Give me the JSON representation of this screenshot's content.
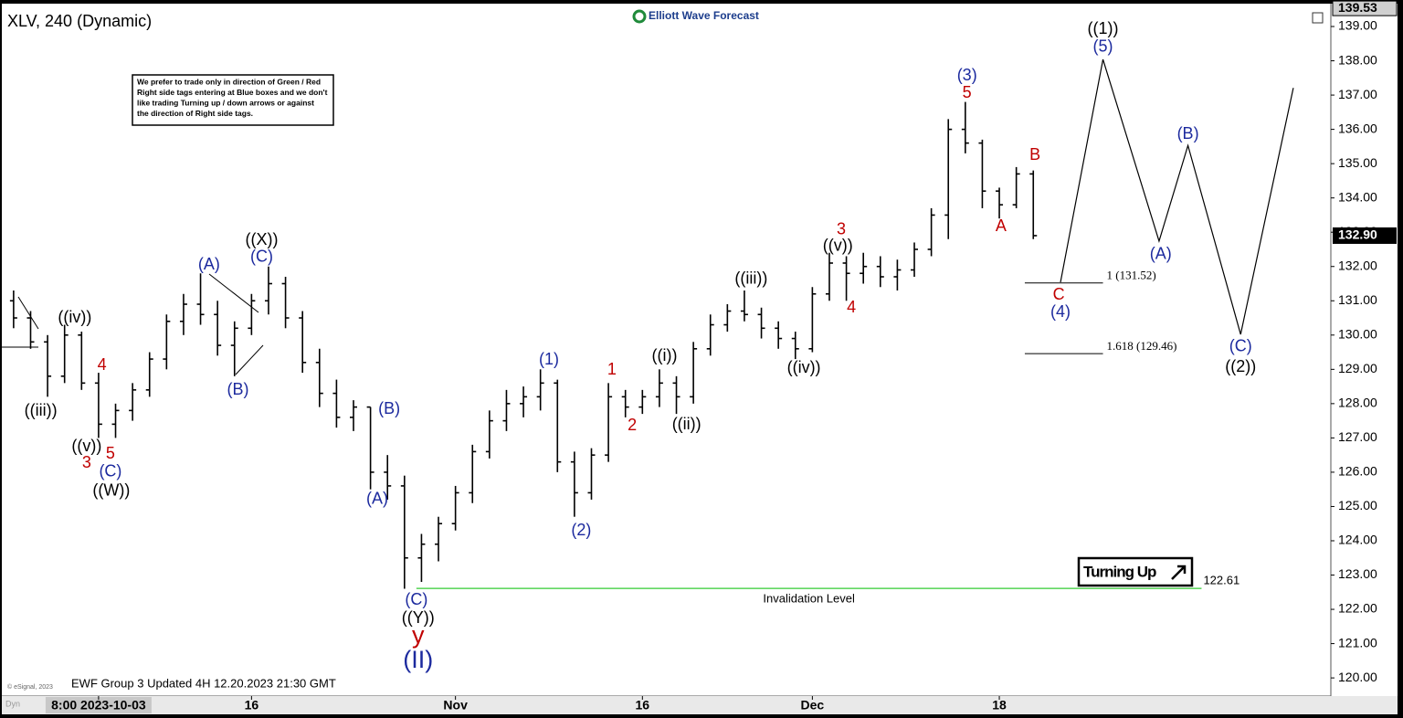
{
  "chart_data": {
    "type": "ohlc",
    "title": "XLV, 240 (Dynamic)",
    "brand": "Elliott Wave Forecast",
    "note": [
      "We prefer to trade only in direction of Green / Red",
      "Right side tags entering at Blue boxes and we don't",
      "like trading Turning up / down arrows or against",
      "the direction of Right side tags."
    ],
    "footer": "EWF Group 3 Updated 4H 12.20.2023 21:30 GMT",
    "copyright": "© eSignal, 2023",
    "corner_label": "Dyn",
    "badge": "Turning Up",
    "xlim": [
      -5.8,
      72.4
    ],
    "ylim": [
      119.47,
      139.56
    ],
    "xticks": [
      {
        "value": 0,
        "label": "8:00 2023-10-03"
      },
      {
        "value": 9,
        "label": "16"
      },
      {
        "value": 21,
        "label": "Nov"
      },
      {
        "value": 32,
        "label": "16"
      },
      {
        "value": 42,
        "label": "Dec"
      },
      {
        "value": 53,
        "label": "18"
      }
    ],
    "yticks": [
      {
        "value": 120,
        "label": "120.00"
      },
      {
        "value": 121,
        "label": "121.00"
      },
      {
        "value": 122,
        "label": "122.00"
      },
      {
        "value": 123,
        "label": "123.00"
      },
      {
        "value": 124,
        "label": "124.00"
      },
      {
        "value": 125,
        "label": "125.00"
      },
      {
        "value": 126,
        "label": "126.00"
      },
      {
        "value": 127,
        "label": "127.00"
      },
      {
        "value": 128,
        "label": "128.00"
      },
      {
        "value": 129,
        "label": "129.00"
      },
      {
        "value": 130,
        "label": "130.00"
      },
      {
        "value": 131,
        "label": "131.00"
      },
      {
        "value": 132,
        "label": "132.00"
      },
      {
        "value": 133,
        "label": "133.00"
      },
      {
        "value": 134,
        "label": "134.00"
      },
      {
        "value": 135,
        "label": "135.00"
      },
      {
        "value": 136,
        "label": "136.00"
      },
      {
        "value": 137,
        "label": "137.00"
      },
      {
        "value": 138,
        "label": "138.00"
      },
      {
        "value": 139,
        "label": "139.00"
      }
    ],
    "top_price": {
      "value": 139.53,
      "label": "139.53"
    },
    "last_price": {
      "value": 132.9,
      "label": "132.90"
    },
    "color": "#000000",
    "x": [
      -5,
      -4,
      -3,
      -2,
      -1,
      0,
      1,
      2,
      3,
      4,
      5,
      6,
      7,
      8,
      9,
      10,
      11,
      12,
      13,
      14,
      15,
      16,
      17,
      18,
      19,
      20,
      21,
      22,
      23,
      24,
      25,
      26,
      27,
      28,
      29,
      30,
      31,
      32,
      33,
      34,
      35,
      36,
      37,
      38,
      39,
      40,
      41,
      42,
      43,
      44,
      45,
      46,
      47,
      48,
      49,
      50,
      51,
      52,
      53,
      54,
      55
    ],
    "open": [
      131.0,
      130.5,
      129.8,
      128.8,
      130.0,
      128.6,
      127.4,
      127.8,
      128.4,
      129.3,
      130.4,
      130.9,
      130.6,
      129.7,
      130.2,
      131.0,
      131.5,
      130.5,
      129.2,
      128.3,
      127.6,
      127.9,
      126.0,
      125.6,
      123.5,
      123.9,
      124.5,
      125.4,
      126.6,
      127.5,
      128.0,
      128.2,
      128.6,
      126.3,
      125.4,
      126.5,
      128.2,
      127.9,
      128.2,
      128.6,
      128.2,
      129.6,
      130.3,
      130.7,
      130.6,
      130.2,
      129.9,
      129.6,
      131.2,
      132.1,
      131.8,
      132.0,
      131.7,
      131.9,
      132.5,
      133.5,
      136.0,
      135.6,
      134.2,
      133.8,
      134.7
    ],
    "high": [
      131.3,
      130.7,
      130.0,
      130.3,
      130.1,
      128.9,
      128.0,
      128.6,
      129.5,
      130.6,
      131.2,
      131.8,
      131.0,
      130.4,
      131.2,
      132.0,
      131.7,
      130.7,
      129.6,
      128.7,
      128.1,
      127.9,
      126.5,
      125.9,
      124.2,
      124.7,
      125.6,
      126.8,
      127.8,
      128.4,
      128.5,
      129.0,
      128.7,
      126.6,
      126.7,
      128.6,
      128.4,
      128.4,
      129.0,
      128.8,
      129.8,
      130.6,
      130.9,
      131.3,
      130.8,
      130.4,
      130.1,
      131.4,
      132.4,
      132.3,
      132.4,
      132.3,
      132.2,
      132.7,
      133.7,
      136.3,
      136.8,
      135.7,
      134.3,
      134.9,
      134.8
    ],
    "low": [
      130.2,
      129.6,
      128.2,
      128.6,
      128.4,
      127.0,
      127.0,
      127.5,
      128.2,
      129.0,
      130.0,
      130.3,
      129.4,
      128.8,
      130.0,
      130.6,
      130.2,
      128.9,
      127.9,
      127.3,
      127.2,
      125.5,
      125.2,
      122.6,
      122.8,
      123.4,
      124.3,
      125.1,
      126.4,
      127.2,
      127.6,
      127.8,
      126.0,
      124.7,
      125.2,
      126.3,
      127.6,
      127.7,
      127.9,
      127.7,
      128.0,
      129.4,
      130.1,
      130.4,
      129.9,
      129.6,
      129.3,
      129.5,
      131.0,
      131.0,
      131.5,
      131.4,
      131.3,
      131.7,
      132.3,
      132.8,
      135.3,
      133.7,
      133.4,
      133.7,
      132.8
    ],
    "close": [
      130.5,
      129.8,
      128.8,
      130.0,
      128.6,
      127.4,
      127.8,
      128.4,
      129.3,
      130.4,
      130.9,
      130.6,
      129.7,
      130.2,
      131.0,
      131.5,
      130.5,
      129.2,
      128.3,
      127.6,
      127.9,
      126.0,
      125.6,
      123.5,
      123.9,
      124.5,
      125.4,
      126.6,
      127.5,
      128.0,
      128.2,
      128.6,
      126.3,
      125.4,
      126.5,
      128.2,
      127.9,
      128.2,
      128.6,
      128.2,
      129.6,
      130.3,
      130.7,
      130.6,
      130.2,
      129.9,
      129.6,
      131.2,
      132.1,
      131.8,
      132.0,
      131.7,
      131.9,
      132.5,
      133.5,
      136.0,
      135.6,
      134.2,
      133.8,
      134.7,
      132.9
    ],
    "projection": {
      "x": [
        56.6,
        59.1,
        62.4,
        64.1,
        67.2,
        70.3
      ],
      "y": [
        131.54,
        138.04,
        132.74,
        135.53,
        130.02,
        137.21
      ]
    },
    "levels": [
      {
        "label": "1 (131.52)",
        "value": 131.52,
        "x": [
          54.5,
          59.1
        ]
      },
      {
        "label": "1.618 (129.46)",
        "value": 129.46,
        "x": [
          54.5,
          59.1
        ]
      }
    ],
    "invalidation": {
      "label": "Invalidation Level",
      "value": 122.61,
      "value_label": "122.61",
      "x": [
        18.7,
        64.9
      ],
      "color": "#33cc33"
    },
    "annotations": [
      {
        "text": "((iii))",
        "x": -3.4,
        "y": 127.78,
        "color": "#000000"
      },
      {
        "text": "((iv))",
        "x": -1.4,
        "y": 130.5,
        "color": "#000000"
      },
      {
        "text": "((v))",
        "x": -0.7,
        "y": 126.74,
        "color": "#000000"
      },
      {
        "text": "((W))",
        "x": 0.75,
        "y": 125.44,
        "color": "#000000"
      },
      {
        "text": "((X))",
        "x": 9.6,
        "y": 132.76,
        "color": "#000000"
      },
      {
        "text": "((Y))",
        "x": 18.8,
        "y": 121.73,
        "color": "#000000"
      },
      {
        "text": "((i))",
        "x": 33.3,
        "y": 129.38,
        "color": "#000000"
      },
      {
        "text": "((ii))",
        "x": 34.6,
        "y": 127.38,
        "color": "#000000"
      },
      {
        "text": "((iii))",
        "x": 38.4,
        "y": 131.62,
        "color": "#000000"
      },
      {
        "text": "((iv))",
        "x": 41.5,
        "y": 129.03,
        "color": "#000000"
      },
      {
        "text": "((v))",
        "x": 43.5,
        "y": 132.58,
        "color": "#000000"
      },
      {
        "text": "((1))",
        "x": 59.1,
        "y": 138.92,
        "color": "#000000"
      },
      {
        "text": "((2))",
        "x": 67.2,
        "y": 129.06,
        "color": "#000000"
      },
      {
        "text": "(C)",
        "x": 0.7,
        "y": 126.0,
        "color": "#1c2a9e"
      },
      {
        "text": "(A)",
        "x": 6.5,
        "y": 132.04,
        "color": "#1c2a9e"
      },
      {
        "text": "(C)",
        "x": 9.6,
        "y": 132.26,
        "color": "#1c2a9e"
      },
      {
        "text": "(B)",
        "x": 8.2,
        "y": 128.39,
        "color": "#1c2a9e"
      },
      {
        "text": "(B)",
        "x": 17.1,
        "y": 127.83,
        "color": "#1c2a9e"
      },
      {
        "text": "(A)",
        "x": 16.4,
        "y": 125.2,
        "color": "#1c2a9e"
      },
      {
        "text": "(C)",
        "x": 18.7,
        "y": 122.26,
        "color": "#1c2a9e"
      },
      {
        "text": "(1)",
        "x": 26.5,
        "y": 129.27,
        "color": "#1c2a9e"
      },
      {
        "text": "(2)",
        "x": 28.4,
        "y": 124.29,
        "color": "#1c2a9e"
      },
      {
        "text": "(3)",
        "x": 51.1,
        "y": 137.56,
        "color": "#1c2a9e"
      },
      {
        "text": "(4)",
        "x": 56.6,
        "y": 130.66,
        "color": "#1c2a9e"
      },
      {
        "text": "(5)",
        "x": 59.1,
        "y": 138.39,
        "color": "#1c2a9e"
      },
      {
        "text": "(A)",
        "x": 62.5,
        "y": 132.34,
        "color": "#1c2a9e"
      },
      {
        "text": "(B)",
        "x": 64.1,
        "y": 135.85,
        "color": "#1c2a9e"
      },
      {
        "text": "(C)",
        "x": 67.2,
        "y": 129.65,
        "color": "#1c2a9e"
      },
      {
        "text": "(II)",
        "x": 18.8,
        "y": 120.48,
        "color": "#1c2a9e",
        "large": true
      },
      {
        "text": "4",
        "x": 0.2,
        "y": 129.11,
        "color": "#c00000"
      },
      {
        "text": "5",
        "x": 0.7,
        "y": 126.53,
        "color": "#c00000"
      },
      {
        "text": "3",
        "x": -0.7,
        "y": 126.26,
        "color": "#c00000"
      },
      {
        "text": "1",
        "x": 30.2,
        "y": 128.98,
        "color": "#c00000"
      },
      {
        "text": "2",
        "x": 31.4,
        "y": 127.35,
        "color": "#c00000"
      },
      {
        "text": "3",
        "x": 43.7,
        "y": 133.06,
        "color": "#c00000"
      },
      {
        "text": "4",
        "x": 44.3,
        "y": 130.79,
        "color": "#c00000"
      },
      {
        "text": "5",
        "x": 51.1,
        "y": 137.05,
        "color": "#c00000"
      },
      {
        "text": "A",
        "x": 53.1,
        "y": 133.16,
        "color": "#c00000"
      },
      {
        "text": "B",
        "x": 55.1,
        "y": 135.24,
        "color": "#c00000"
      },
      {
        "text": "C",
        "x": 56.5,
        "y": 131.16,
        "color": "#c00000"
      },
      {
        "text": "y",
        "x": 18.8,
        "y": 121.2,
        "color": "#c00000",
        "large": true
      }
    ]
  }
}
